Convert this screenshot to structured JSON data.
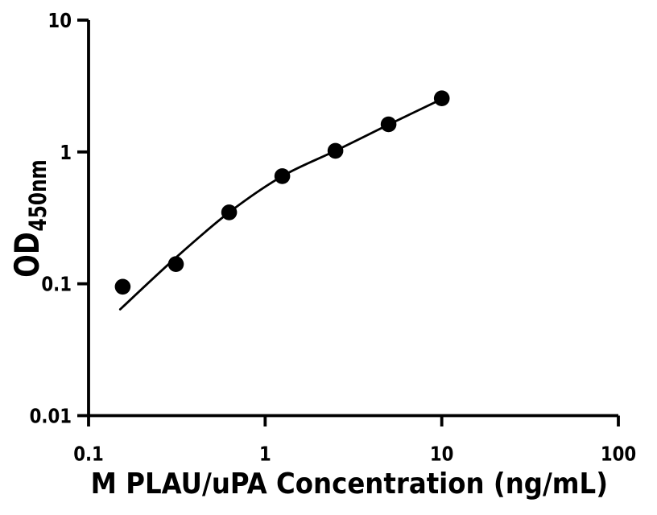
{
  "page": {
    "background_color": "#ffffff",
    "foreground_color": "#000000"
  },
  "chart_data": {
    "type": "scatter",
    "title": "",
    "xlabel": "M PLAU/uPA Concentration (ng/mL)",
    "ylabel": "OD",
    "ylabel_subscript": "450nm",
    "x_scale": "log",
    "y_scale": "log",
    "xlim": [
      0.1,
      100
    ],
    "ylim": [
      0.01,
      10
    ],
    "grid": false,
    "legend": false,
    "x_ticks": [
      {
        "value": 0.1,
        "label": "0.1"
      },
      {
        "value": 1,
        "label": "1"
      },
      {
        "value": 10,
        "label": "10"
      },
      {
        "value": 100,
        "label": "100"
      }
    ],
    "y_ticks": [
      {
        "value": 10,
        "label": "10"
      },
      {
        "value": 1,
        "label": "1"
      },
      {
        "value": 0.1,
        "label": "0.1"
      },
      {
        "value": 0.01,
        "label": "0.01"
      }
    ],
    "series": [
      {
        "marker": "filled-circle",
        "color": "#000000",
        "points": [
          {
            "x": 0.156,
            "od": 0.095
          },
          {
            "x": 0.3125,
            "od": 0.141
          },
          {
            "x": 0.625,
            "od": 0.348
          },
          {
            "x": 1.25,
            "od": 0.655
          },
          {
            "x": 2.5,
            "od": 1.02
          },
          {
            "x": 5,
            "od": 1.62
          },
          {
            "x": 10,
            "od": 2.55
          }
        ]
      }
    ],
    "fit_curve": {
      "color": "#000000",
      "points": [
        {
          "x": 0.151,
          "od": 0.064
        },
        {
          "x": 0.3125,
          "od": 0.158
        },
        {
          "x": 0.625,
          "od": 0.348
        },
        {
          "x": 1.25,
          "od": 0.655
        },
        {
          "x": 2.5,
          "od": 1.02
        },
        {
          "x": 5,
          "od": 1.61
        },
        {
          "x": 10,
          "od": 2.52
        }
      ]
    }
  }
}
